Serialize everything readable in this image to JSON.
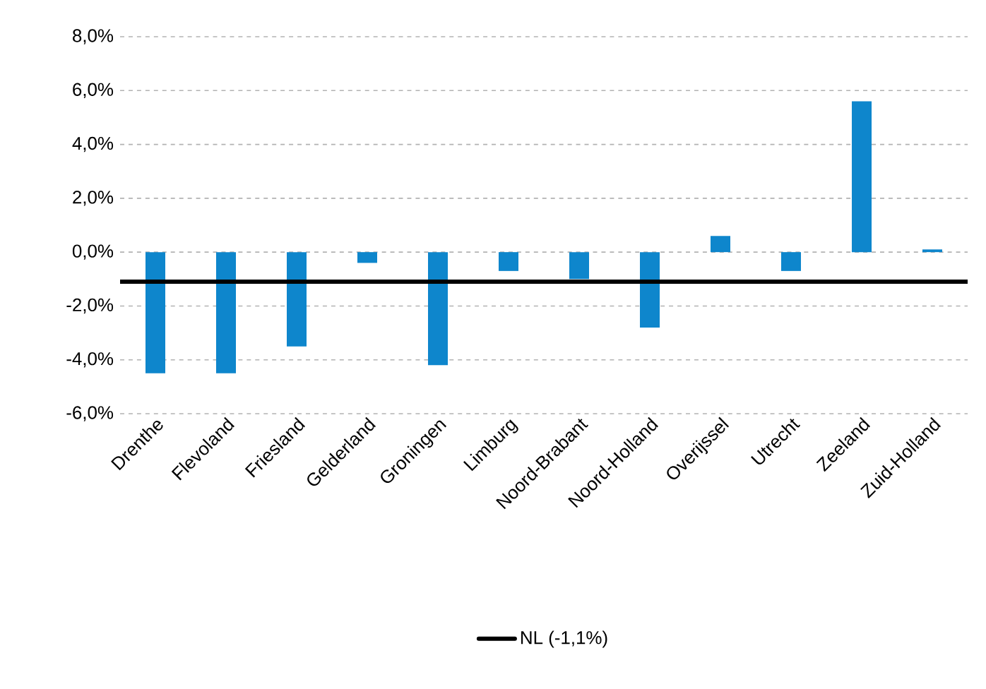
{
  "chart_data": {
    "type": "bar",
    "categories": [
      "Drenthe",
      "Flevoland",
      "Friesland",
      "Gelderland",
      "Groningen",
      "Limburg",
      "Noord-Brabant",
      "Noord-Holland",
      "Overijssel",
      "Utrecht",
      "Zeeland",
      "Zuid-Holland"
    ],
    "values": [
      -4.5,
      -4.5,
      -3.5,
      -0.4,
      -4.2,
      -0.7,
      -1.0,
      -2.8,
      0.6,
      -0.7,
      5.6,
      0.1
    ],
    "color": "#0e86cc",
    "ylim": [
      -6,
      8
    ],
    "yticks": [
      {
        "value": -6,
        "label": "-6,0%"
      },
      {
        "value": -4,
        "label": "-4,0%"
      },
      {
        "value": -2,
        "label": "-2,0%"
      },
      {
        "value": 0,
        "label": "0,0%"
      },
      {
        "value": 2,
        "label": "2,0%"
      },
      {
        "value": 4,
        "label": "4,0%"
      },
      {
        "value": 6,
        "label": "6,0%"
      },
      {
        "value": 8,
        "label": "8,0%"
      }
    ],
    "grid": "y",
    "ref_lines": [
      {
        "axis": "y",
        "value": -1.1,
        "label": "NL (-1,1%)",
        "color": "#000000",
        "line_style": "solid"
      }
    ],
    "legend": "bottom"
  }
}
